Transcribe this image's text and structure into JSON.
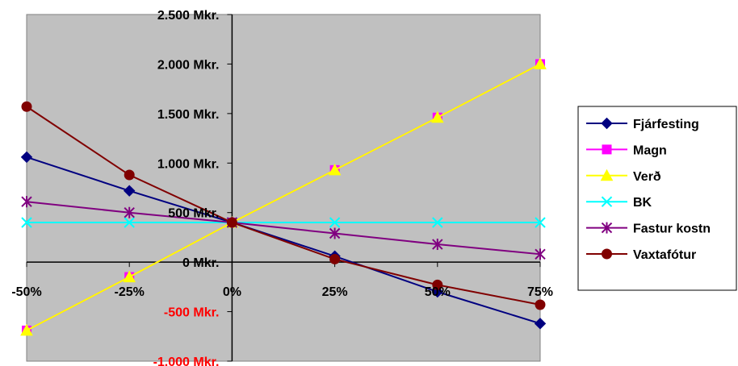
{
  "chart_data": {
    "type": "line",
    "x": [
      "-50%",
      "-25%",
      "0%",
      "25%",
      "50%",
      "75%"
    ],
    "ylim": [
      -1000,
      2500
    ],
    "ytick_values": [
      2500,
      2000,
      1500,
      1000,
      500,
      0,
      -500,
      -1000
    ],
    "ytick_labels": [
      "2.500 Mkr.",
      "2.000 Mkr.",
      "1.500 Mkr.",
      "1.000 Mkr.",
      "500 Mkr.",
      "0 Mkr.",
      "-500 Mkr.",
      "-1.000 Mkr."
    ],
    "negative_label_color": "#ff0000",
    "plot_background": "#c0c0c0",
    "grid": false,
    "legend_position": "right",
    "series": [
      {
        "name": "Fjárfesting",
        "color": "#000080",
        "marker": "diamond",
        "values": [
          1060,
          720,
          400,
          60,
          -300,
          -620
        ]
      },
      {
        "name": "Magn",
        "color": "#ff00ff",
        "marker": "square",
        "values": [
          -690,
          -150,
          400,
          930,
          1460,
          2000
        ]
      },
      {
        "name": "Verð",
        "color": "#ffff00",
        "marker": "triangle",
        "values": [
          -690,
          -150,
          400,
          930,
          1460,
          2000
        ]
      },
      {
        "name": "BK",
        "color": "#00ffff",
        "marker": "x",
        "values": [
          400,
          400,
          400,
          400,
          400,
          400
        ]
      },
      {
        "name": "Fastur kostn",
        "color": "#800080",
        "marker": "star",
        "values": [
          610,
          500,
          400,
          290,
          180,
          80
        ]
      },
      {
        "name": "Vaxtafótur",
        "color": "#800000",
        "marker": "circle",
        "values": [
          1570,
          880,
          400,
          30,
          -230,
          -430
        ]
      }
    ]
  }
}
